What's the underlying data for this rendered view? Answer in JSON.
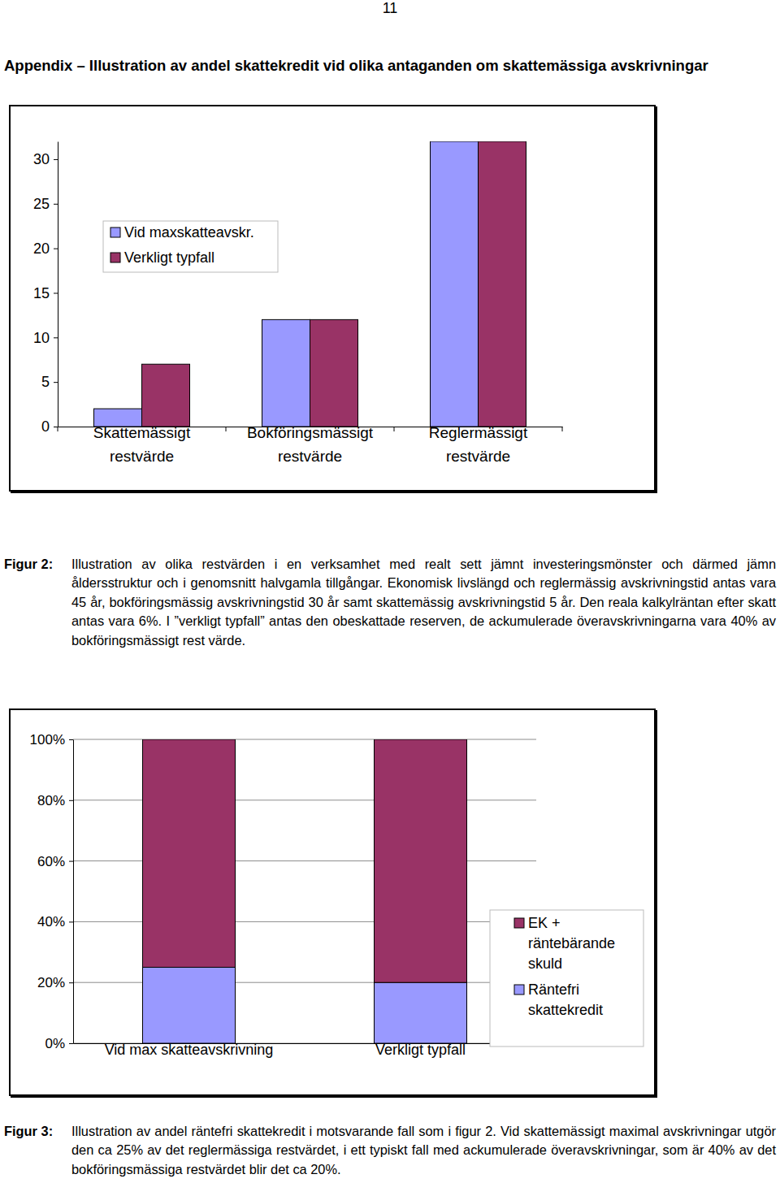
{
  "document": {
    "page_number": "11",
    "heading": "Appendix – Illustration av andel skattekredit vid olika antaganden om skattemässiga avskrivningar",
    "figure_captions": [
      {
        "label": "Figur 2:",
        "text": "Illustration av olika restvärden i en verksamhet med realt sett jämnt investeringsmönster och därmed jämn åldersstruktur och i genomsnitt halvgamla tillgångar. Ekonomisk livslängd och reglermässig avskrivningstid antas vara 45 år, bokföringsmässig avskrivningstid 30 år samt skattemässig avskrivningstid 5 år. Den reala kalkylräntan efter skatt antas vara 6%. I ”verkligt typfall” antas den obeskattade reserven, de ackumulerade överavskrivningarna vara 40% av bokföringsmässigt rest värde."
      },
      {
        "label": "Figur 3:",
        "text": "Illustration av andel räntefri skattekredit i motsvarande fall som i figur 2. Vid skattemässigt maximal avskrivningar utgör den ca 25% av det reglermässiga restvärdet, i ett typiskt fall med ackumulerade överavskrivningar, som är 40% av det bokföringsmässiga restvärdet blir det ca 20%."
      }
    ]
  },
  "chart_data": [
    {
      "type": "bar",
      "categories": [
        "Skattemässigt restvärde",
        "Bokföringsmässigt restvärde",
        "Reglermässigt restvärde"
      ],
      "series": [
        {
          "name": "Vid maxskatteavskr.",
          "color": "#9999ff",
          "values": [
            2,
            12,
            32
          ]
        },
        {
          "name": "Verkligt typfall",
          "color": "#993366",
          "values": [
            7,
            12,
            32
          ]
        }
      ],
      "ylim": [
        0,
        32
      ],
      "yticks": [
        0,
        5,
        10,
        15,
        20,
        25,
        30
      ],
      "grid": false,
      "legend": "upper left"
    },
    {
      "type": "bar",
      "stacked": true,
      "categories": [
        "Vid max skatteavskrivning",
        "Verkligt typfall"
      ],
      "series": [
        {
          "name": "Räntefri skattekredit",
          "color": "#9999ff",
          "values": [
            25,
            20
          ]
        },
        {
          "name": "EK + räntebärande skuld",
          "color": "#993366",
          "values": [
            75,
            80
          ]
        }
      ],
      "ylim": [
        0,
        100
      ],
      "yticks": [
        {
          "value": 0,
          "label": "0%"
        },
        {
          "value": 20,
          "label": "20%"
        },
        {
          "value": 40,
          "label": "40%"
        },
        {
          "value": 60,
          "label": "60%"
        },
        {
          "value": 80,
          "label": "80%"
        },
        {
          "value": 100,
          "label": "100%"
        }
      ],
      "grid": true,
      "legend": "right"
    }
  ]
}
